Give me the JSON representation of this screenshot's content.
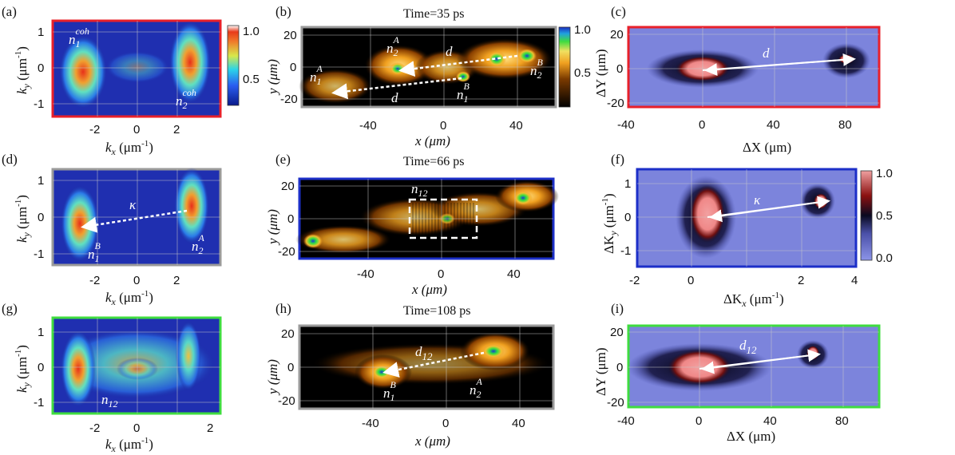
{
  "panel_letters": [
    "(a)",
    "(b)",
    "(c)",
    "(d)",
    "(e)",
    "(f)",
    "(g)",
    "(h)",
    "(i)"
  ],
  "colors": {
    "red_frame": "#e8202a",
    "gray_frame": "#9a9a9a",
    "blue_frame": "#1c2fc8",
    "green_frame": "#3fdc3f",
    "cmap_low": "#0a1a8c",
    "cmap_mid": "#2bd4e8",
    "cmap_high": "#e83a1a",
    "diff_bg": "#7c84dc",
    "diff_peak": "#f08c8c"
  },
  "panels": {
    "a": {
      "letter": "(a)",
      "xlabel_main": "k",
      "xlabel_sub": "x",
      "xlabel_unit": " (μm",
      "xlabel_sup": "-1",
      "xlabel_close": ")",
      "ylabel_main": "k",
      "ylabel_sub": "y",
      "ylabel_unit": " (μm",
      "ylabel_sup": "-1",
      "ylabel_close": ")",
      "xticks": [
        "-2",
        "0",
        "2"
      ],
      "yticks": [
        "1",
        "0",
        "-1"
      ],
      "annotations": [
        {
          "main": "n",
          "sub": "1",
          "sup": "coh"
        },
        {
          "main": "n",
          "sub": "2",
          "sup": "coh"
        }
      ]
    },
    "b": {
      "letter": "(b)",
      "title": "Time=35 ps",
      "xlabel": "x (μm)",
      "ylabel": "y (μm)",
      "xticks": [
        "-40",
        "0",
        "40"
      ],
      "yticks": [
        "20",
        "0",
        "-20"
      ],
      "annotations": [
        {
          "main": "n",
          "sub": "2",
          "sup": "A"
        },
        {
          "main": "n",
          "sub": "1",
          "sup": "A"
        },
        {
          "main": "n",
          "sub": "1",
          "sup": "B"
        },
        {
          "main": "n",
          "sub": "2",
          "sup": "B"
        },
        {
          "main": "d"
        },
        {
          "main": "d"
        }
      ]
    },
    "c": {
      "letter": "(c)",
      "xlabel": "ΔX (μm)",
      "ylabel": "ΔY (μm)",
      "xticks": [
        "-40",
        "0",
        "40",
        "80"
      ],
      "yticks": [
        "20",
        "0",
        "-20"
      ],
      "annotations": [
        {
          "main": "d"
        }
      ]
    },
    "d": {
      "letter": "(d)",
      "xlabel_main": "k",
      "xlabel_sub": "x",
      "xlabel_unit": " (μm",
      "xlabel_sup": "-1",
      "xlabel_close": ")",
      "ylabel_main": "k",
      "ylabel_sub": "y",
      "ylabel_unit": " (μm",
      "ylabel_sup": "-1",
      "ylabel_close": ")",
      "xticks": [
        "-2",
        "0",
        "2"
      ],
      "yticks": [
        "1",
        "0",
        "-1"
      ],
      "annotations": [
        {
          "main": "κ"
        },
        {
          "main": "n",
          "sub": "1",
          "sup": "B"
        },
        {
          "main": "n",
          "sub": "2",
          "sup": "A"
        }
      ]
    },
    "e": {
      "letter": "(e)",
      "title": "Time=66 ps",
      "xlabel": "x (μm)",
      "ylabel": "y (μm)",
      "xticks": [
        "-40",
        "0",
        "40"
      ],
      "yticks": [
        "20",
        "0",
        "-20"
      ],
      "annotations": [
        {
          "main": "n",
          "sub": "12"
        }
      ]
    },
    "f": {
      "letter": "(f)",
      "xlabel": "ΔK",
      "xlabel_sub": "x",
      "xlabel_unit": " (μm",
      "xlabel_sup": "-1",
      "xlabel_close": ")",
      "ylabel": "ΔK",
      "ylabel_sub": "y",
      "ylabel_unit": " (μm",
      "ylabel_sup": "-1",
      "ylabel_close": ")",
      "xticks": [
        "-2",
        "0",
        "2",
        "4"
      ],
      "yticks": [
        "1",
        "0",
        "-1"
      ],
      "annotations": [
        {
          "main": "κ"
        }
      ]
    },
    "g": {
      "letter": "(g)",
      "xlabel_main": "k",
      "xlabel_sub": "x",
      "xlabel_unit": " (μm",
      "xlabel_sup": "-1",
      "xlabel_close": ")",
      "ylabel_main": "k",
      "ylabel_sub": "y",
      "ylabel_unit": " (μm",
      "ylabel_sup": "-1",
      "ylabel_close": ")",
      "xticks": [
        "-2",
        "0",
        "2"
      ],
      "yticks": [
        "1",
        "0",
        "-1"
      ],
      "annotations": [
        {
          "main": "n",
          "sub": "12"
        }
      ]
    },
    "h": {
      "letter": "(h)",
      "title": "Time=108 ps",
      "xlabel": "x (μm)",
      "ylabel": "y (μm)",
      "xticks": [
        "-40",
        "0",
        "40"
      ],
      "yticks": [
        "20",
        "0",
        "-20"
      ],
      "annotations": [
        {
          "main": "d",
          "sub": "12"
        },
        {
          "main": "n",
          "sub": "1",
          "sup": "B"
        },
        {
          "main": "n",
          "sub": "2",
          "sup": "A"
        }
      ]
    },
    "i": {
      "letter": "(i)",
      "xlabel": "ΔX (μm)",
      "ylabel": "ΔY (μm)",
      "xticks": [
        "-40",
        "0",
        "40",
        "80"
      ],
      "yticks": [
        "20",
        "0",
        "-20"
      ],
      "annotations": [
        {
          "main": "d",
          "sub": "12"
        }
      ]
    }
  },
  "colorbars": {
    "a": {
      "ticks": [
        "1.0",
        "0.5"
      ]
    },
    "b": {
      "ticks": [
        "1.0",
        "0.5"
      ]
    },
    "f": {
      "ticks": [
        "1.0",
        "0.5",
        "0.0"
      ]
    }
  }
}
